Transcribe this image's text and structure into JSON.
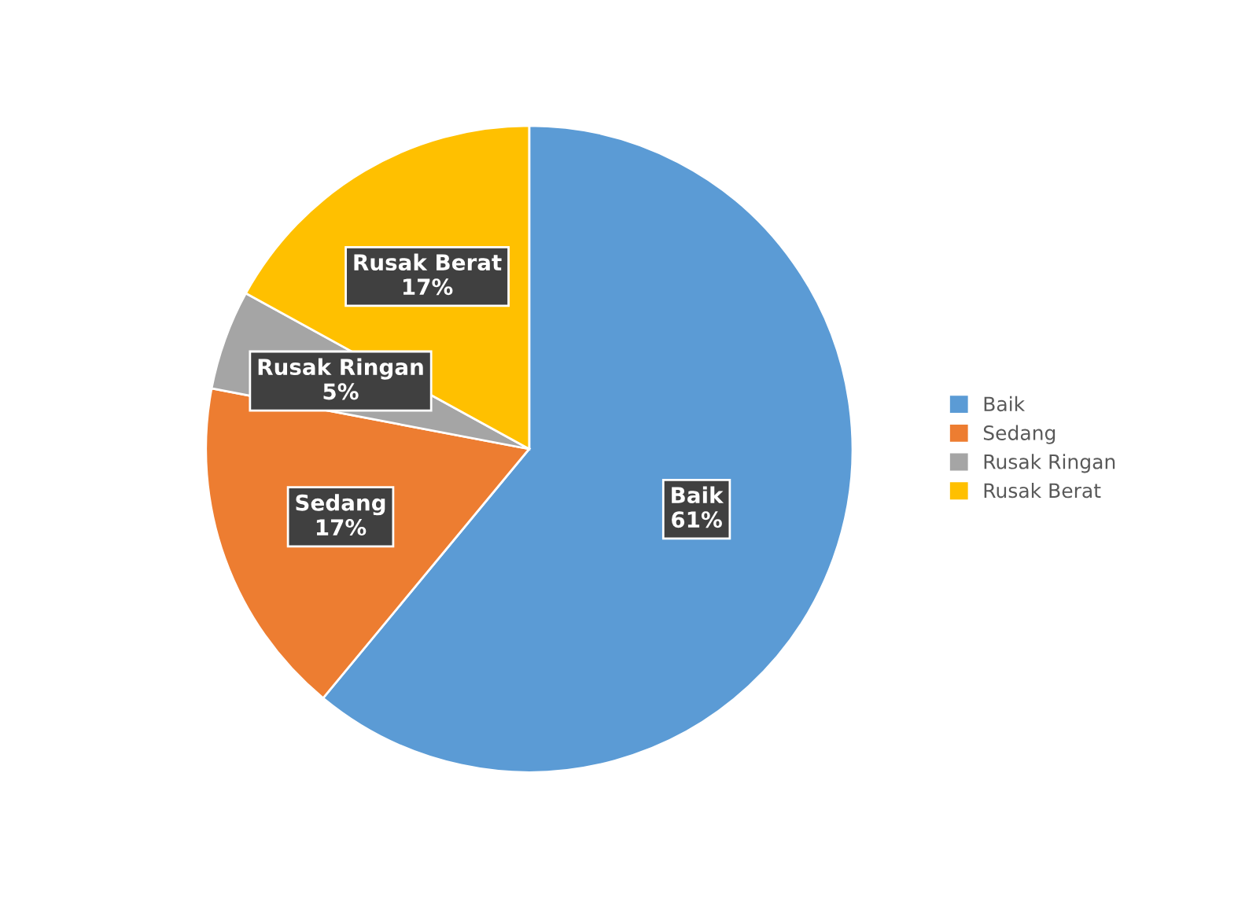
{
  "chart_data": {
    "type": "pie",
    "categories": [
      "Baik",
      "Sedang",
      "Rusak Ringan",
      "Rusak Berat"
    ],
    "values": [
      61,
      17,
      5,
      17
    ],
    "value_labels": [
      "61%",
      "17%",
      "5%",
      "17%"
    ],
    "colors": [
      "#5b9bd5",
      "#ed7d31",
      "#a5a5a5",
      "#ffc000"
    ],
    "legend": "right"
  }
}
